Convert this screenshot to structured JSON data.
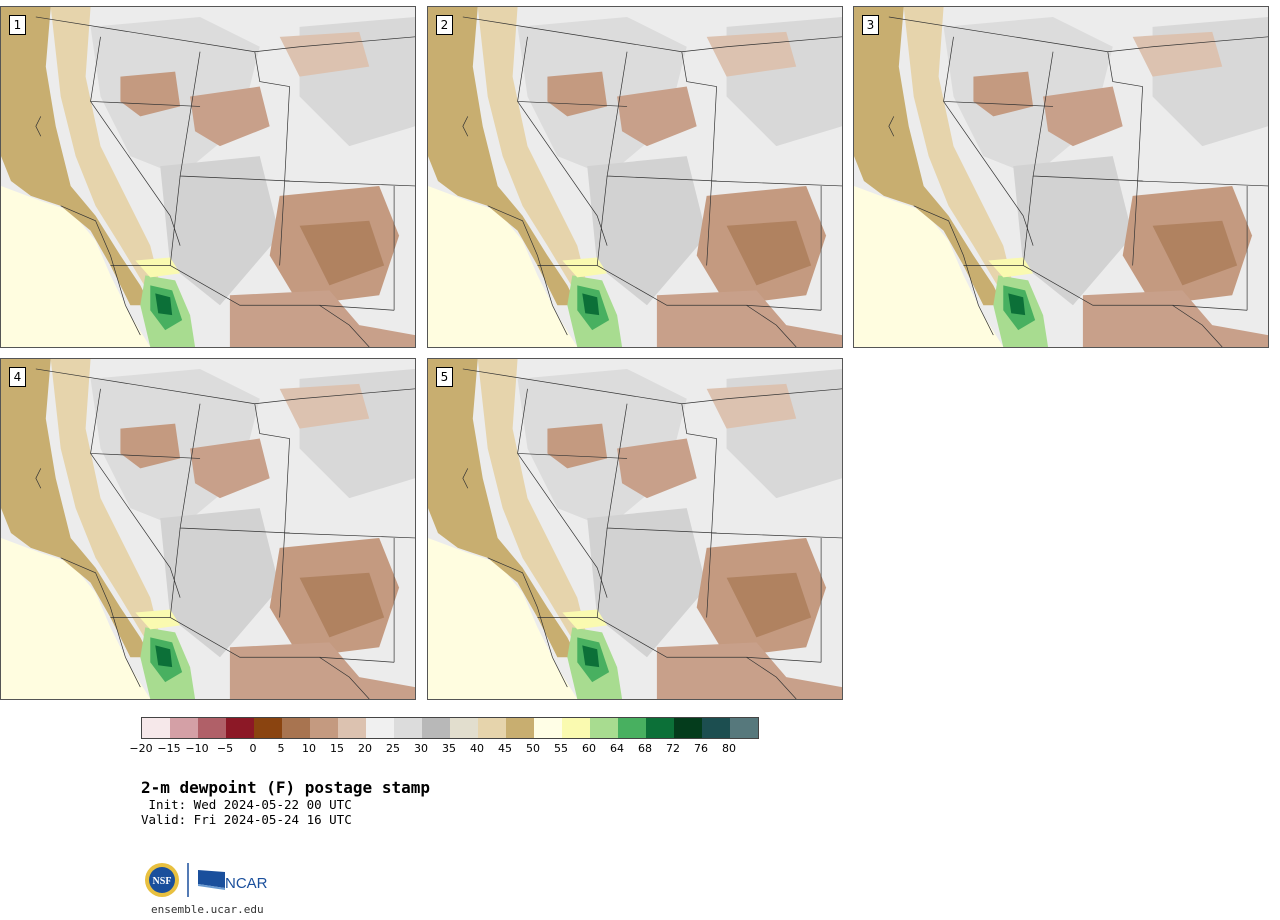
{
  "panels": [
    {
      "label": "1"
    },
    {
      "label": "2"
    },
    {
      "label": "3"
    },
    {
      "label": "4"
    },
    {
      "label": "5"
    }
  ],
  "colorbar": {
    "colors": [
      "#f6e8ea",
      "#d4a0a6",
      "#b06068",
      "#8c1826",
      "#8a4410",
      "#a87450",
      "#c49a80",
      "#dcc2b0",
      "#f0f0f0",
      "#dcdcdc",
      "#b8b8b8",
      "#e2dece",
      "#e6d4ac",
      "#c8ae70",
      "#fffee6",
      "#fafab0",
      "#a8dc90",
      "#48b060",
      "#0c7038",
      "#043c1c",
      "#1c4e50",
      "#56787c"
    ],
    "ticks": [
      "−20",
      "−15",
      "−10",
      "−5",
      "0",
      "5",
      "10",
      "15",
      "20",
      "25",
      "30",
      "35",
      "40",
      "45",
      "50",
      "55",
      "60",
      "64",
      "68",
      "72",
      "76",
      "80"
    ]
  },
  "title": "2-m dewpoint (F) postage stamp",
  "init": " Init: Wed 2024-05-22 00 UTC",
  "valid": "Valid: Fri 2024-05-24 16 UTC",
  "logos": {
    "nsf": "NSF",
    "ncar": "NCAR"
  },
  "url": "ensemble.ucar.edu"
}
